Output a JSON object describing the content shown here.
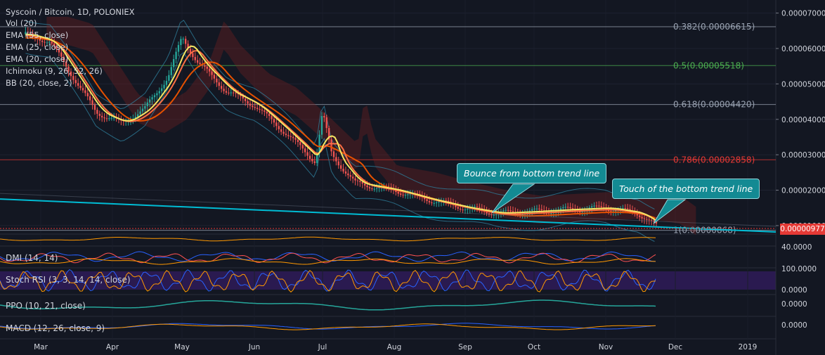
{
  "header": {
    "title": "Syscoin / Bitcoin, 1D, POLONIEX",
    "overlays": [
      "Vol (20)",
      "EMA (55, close)",
      "EMA (25, close)",
      "EMA (20, close)",
      "Ichimoku (9, 26, 52, 26)",
      "BB (20, close, 2)"
    ]
  },
  "panes": {
    "dmi": "DMI (14, 14)",
    "stoch": "Stoch RSI (3, 3, 14, 14, close)",
    "ppo": "PPO (10, 21, close)",
    "macd": "MACD (12, 26, close, 9)"
  },
  "annotations": {
    "bounce": "Bounce from bottom trend line",
    "touch": "Touch of the bottom trend line"
  },
  "last_price": "0.00000977",
  "colors": {
    "background": "#131722",
    "candle_up": "#26a69a",
    "candle_down": "#ef5350",
    "trendline": "#00bcd4",
    "ema20": "#f5e663",
    "ema25": "#ff7043",
    "ema55": "#e65100",
    "callout": "#138a93",
    "price_tag": "#e53935"
  },
  "chart_data": {
    "type": "candlestick",
    "title": "Syscoin / Bitcoin, 1D, POLONIEX",
    "y_axis": {
      "ticks": [
        "0.00007000",
        "0.00006000",
        "0.00005000",
        "0.00004000",
        "0.00003000",
        "0.00002000",
        "0.00001000"
      ],
      "ylim": [
        8.2e-06,
        7.21e-05
      ]
    },
    "x_axis": {
      "ticks": [
        "Mar",
        "Apr",
        "May",
        "Jun",
        "Jul",
        "Aug",
        "Sep",
        "Oct",
        "Nov",
        "Dec",
        "2019"
      ]
    },
    "fib_levels": [
      {
        "label": "0.382(0.00006615)",
        "value": 6.615e-05,
        "color": "#9aa3b2"
      },
      {
        "label": "0.5(0.00005518)",
        "value": 5.518e-05,
        "color": "#4caf50"
      },
      {
        "label": "0.618(0.00004420)",
        "value": 4.42e-05,
        "color": "#9aa3b2"
      },
      {
        "label": "0.786(0.00002858)",
        "value": 2.858e-05,
        "color": "#e53935"
      },
      {
        "label": "1(0.00000868)",
        "value": 8.68e-06,
        "color": "#9aa3b2"
      }
    ],
    "price_path": [
      {
        "t": "Feb 23",
        "v": 6.4e-05
      },
      {
        "t": "Mar 5",
        "v": 6.2e-05
      },
      {
        "t": "Mar 15",
        "v": 5.2e-05
      },
      {
        "t": "Mar 25",
        "v": 4.2e-05
      },
      {
        "t": "Apr 5",
        "v": 3.9e-05
      },
      {
        "t": "Apr 15",
        "v": 4.3e-05
      },
      {
        "t": "Apr 25",
        "v": 5.2e-05
      },
      {
        "t": "May 1",
        "v": 6.3e-05
      },
      {
        "t": "May 8",
        "v": 5.6e-05
      },
      {
        "t": "May 20",
        "v": 4.8e-05
      },
      {
        "t": "Jun 1",
        "v": 4.4e-05
      },
      {
        "t": "Jun 15",
        "v": 3.6e-05
      },
      {
        "t": "Jun 28",
        "v": 2.8e-05
      },
      {
        "t": "Jul 1",
        "v": 4.2e-05
      },
      {
        "t": "Jul 5",
        "v": 3e-05
      },
      {
        "t": "Jul 15",
        "v": 2.2e-05
      },
      {
        "t": "Aug 1",
        "v": 2e-05
      },
      {
        "t": "Aug 15",
        "v": 1.75e-05
      },
      {
        "t": "Sep 1",
        "v": 1.5e-05
      },
      {
        "t": "Sep 15",
        "v": 1.35e-05
      },
      {
        "t": "Oct 1",
        "v": 1.4e-05
      },
      {
        "t": "Oct 15",
        "v": 1.45e-05
      },
      {
        "t": "Nov 1",
        "v": 1.5e-05
      },
      {
        "t": "Nov 15",
        "v": 1.35e-05
      },
      {
        "t": "Nov 23",
        "v": 9.77e-06
      }
    ],
    "trendline": {
      "from": {
        "t": "Feb 23",
        "v": 1.75e-05
      },
      "to": {
        "t": "Dec 20",
        "v": 8.2e-06
      }
    }
  }
}
